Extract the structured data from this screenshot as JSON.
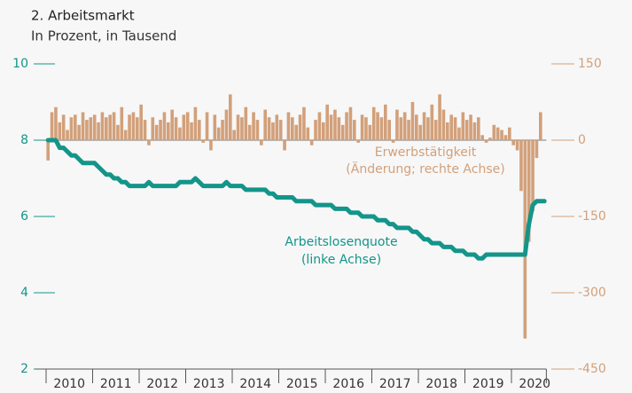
{
  "chart_data": {
    "type": "combo",
    "title": "2. Arbeitsmarkt",
    "subtitle": "In Prozent, in Tausend",
    "categories": [
      null,
      null,
      null,
      null,
      null,
      null,
      "2010",
      null,
      null,
      null,
      null,
      null,
      null,
      null,
      null,
      null,
      null,
      null,
      "2011",
      null,
      null,
      null,
      null,
      null,
      null,
      null,
      null,
      null,
      null,
      null,
      "2012",
      null,
      null,
      null,
      null,
      null,
      null,
      null,
      null,
      null,
      null,
      null,
      "2013",
      null,
      null,
      null,
      null,
      null,
      null,
      null,
      null,
      null,
      null,
      null,
      "2014",
      null,
      null,
      null,
      null,
      null,
      null,
      null,
      null,
      null,
      null,
      null,
      "2015",
      null,
      null,
      null,
      null,
      null,
      null,
      null,
      null,
      null,
      null,
      null,
      "2016",
      null,
      null,
      null,
      null,
      null,
      null,
      null,
      null,
      null,
      null,
      null,
      "2017",
      null,
      null,
      null,
      null,
      null,
      null,
      null,
      null,
      null,
      null,
      null,
      "2018",
      null,
      null,
      null,
      null,
      null,
      null,
      null,
      null,
      null,
      null,
      null,
      "2019",
      null,
      null,
      null,
      null,
      null,
      null,
      null,
      null,
      null,
      null,
      null,
      "2020",
      null,
      null
    ],
    "series": [
      {
        "name": "Erwerbstätigkeit",
        "note": "(Änderung; rechte Achse)",
        "type": "bar",
        "axis": "y2",
        "color": "#d2a07a",
        "values": [
          -40,
          55,
          65,
          35,
          50,
          20,
          45,
          50,
          30,
          55,
          40,
          45,
          50,
          35,
          55,
          45,
          50,
          55,
          30,
          65,
          20,
          50,
          55,
          45,
          70,
          40,
          -10,
          45,
          30,
          40,
          55,
          35,
          60,
          45,
          25,
          50,
          55,
          35,
          65,
          40,
          -5,
          55,
          -20,
          50,
          25,
          40,
          60,
          90,
          20,
          50,
          45,
          65,
          30,
          55,
          40,
          -10,
          60,
          45,
          35,
          50,
          40,
          -20,
          55,
          45,
          30,
          50,
          65,
          25,
          -10,
          40,
          55,
          35,
          70,
          50,
          60,
          45,
          30,
          55,
          65,
          40,
          -5,
          50,
          45,
          30,
          65,
          55,
          45,
          70,
          40,
          -5,
          60,
          45,
          55,
          40,
          75,
          50,
          30,
          55,
          45,
          70,
          40,
          90,
          60,
          35,
          50,
          45,
          25,
          55,
          40,
          50,
          35,
          45,
          10,
          -5,
          5,
          30,
          25,
          20,
          10,
          25,
          -10,
          -20,
          -100,
          -390,
          -200,
          -140,
          -35,
          55,
          null
        ]
      },
      {
        "name": "Arbeitslosenquote",
        "note": "(linke Achse)",
        "type": "line",
        "color": "#13958a",
        "values": [
          8.0,
          8.0,
          8.0,
          7.8,
          7.8,
          7.7,
          7.6,
          7.6,
          7.5,
          7.4,
          7.4,
          7.4,
          7.4,
          7.3,
          7.2,
          7.1,
          7.1,
          7.0,
          7.0,
          6.9,
          6.9,
          6.8,
          6.8,
          6.8,
          6.8,
          6.8,
          6.9,
          6.8,
          6.8,
          6.8,
          6.8,
          6.8,
          6.8,
          6.8,
          6.9,
          6.9,
          6.9,
          6.9,
          7.0,
          6.9,
          6.8,
          6.8,
          6.8,
          6.8,
          6.8,
          6.8,
          6.9,
          6.8,
          6.8,
          6.8,
          6.8,
          6.7,
          6.7,
          6.7,
          6.7,
          6.7,
          6.7,
          6.6,
          6.6,
          6.5,
          6.5,
          6.5,
          6.5,
          6.5,
          6.4,
          6.4,
          6.4,
          6.4,
          6.4,
          6.3,
          6.3,
          6.3,
          6.3,
          6.3,
          6.2,
          6.2,
          6.2,
          6.2,
          6.1,
          6.1,
          6.1,
          6.0,
          6.0,
          6.0,
          6.0,
          5.9,
          5.9,
          5.9,
          5.8,
          5.8,
          5.7,
          5.7,
          5.7,
          5.7,
          5.6,
          5.6,
          5.5,
          5.4,
          5.4,
          5.3,
          5.3,
          5.3,
          5.2,
          5.2,
          5.2,
          5.1,
          5.1,
          5.1,
          5.0,
          5.0,
          5.0,
          4.9,
          4.9,
          5.0,
          5.0,
          5.0,
          5.0,
          5.0,
          5.0,
          5.0,
          5.0,
          5.0,
          5.0,
          5.0,
          5.8,
          6.3,
          6.4,
          6.4,
          6.4
        ]
      }
    ],
    "ylim": [
      2,
      10
    ],
    "yticks": [
      2,
      4,
      6,
      8,
      10
    ],
    "y2lim": [
      -450,
      150
    ],
    "y2ticks": [
      -450,
      -300,
      -150,
      0,
      150
    ]
  }
}
